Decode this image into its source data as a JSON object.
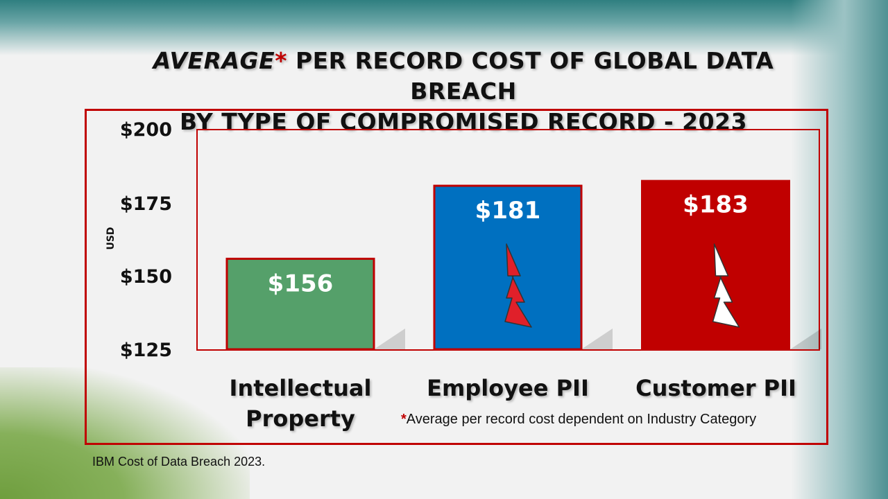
{
  "title": {
    "line1_italic": "AVERAGE",
    "line1_star": "*",
    "line1_rest": " PER RECORD COST OF GLOBAL DATA BREACH",
    "line2": "BY TYPE OF COMPROMISED RECORD - 2023"
  },
  "footnote": {
    "star": "*",
    "text": "Average per record cost dependent on Industry Category"
  },
  "source": "IBM Cost of Data Breach 2023.",
  "colors": {
    "frame": "#c00000",
    "ip_bar": "#55a06a",
    "employee_bar": "#0070c0",
    "customer_bar": "#c00000",
    "lightning_employee": "#e0202a",
    "lightning_customer": "#ffffff"
  },
  "chart_data": {
    "type": "bar",
    "title": "AVERAGE* PER RECORD COST OF GLOBAL DATA BREACH BY TYPE OF COMPROMISED RECORD - 2023",
    "ylabel": "USD",
    "ylim": [
      125,
      200
    ],
    "yticks": [
      125,
      150,
      175,
      200
    ],
    "ytick_labels": [
      "$125",
      "$150",
      "$175",
      "$200"
    ],
    "categories": [
      "Intellectual Property",
      "Employee PII",
      "Customer PII"
    ],
    "category_lines": [
      [
        "Intellectual",
        "Property"
      ],
      [
        "Employee PII"
      ],
      [
        "Customer PII"
      ]
    ],
    "values": [
      156,
      181,
      183
    ],
    "data_labels": [
      "$156",
      "$181",
      "$183"
    ],
    "grid": false
  }
}
